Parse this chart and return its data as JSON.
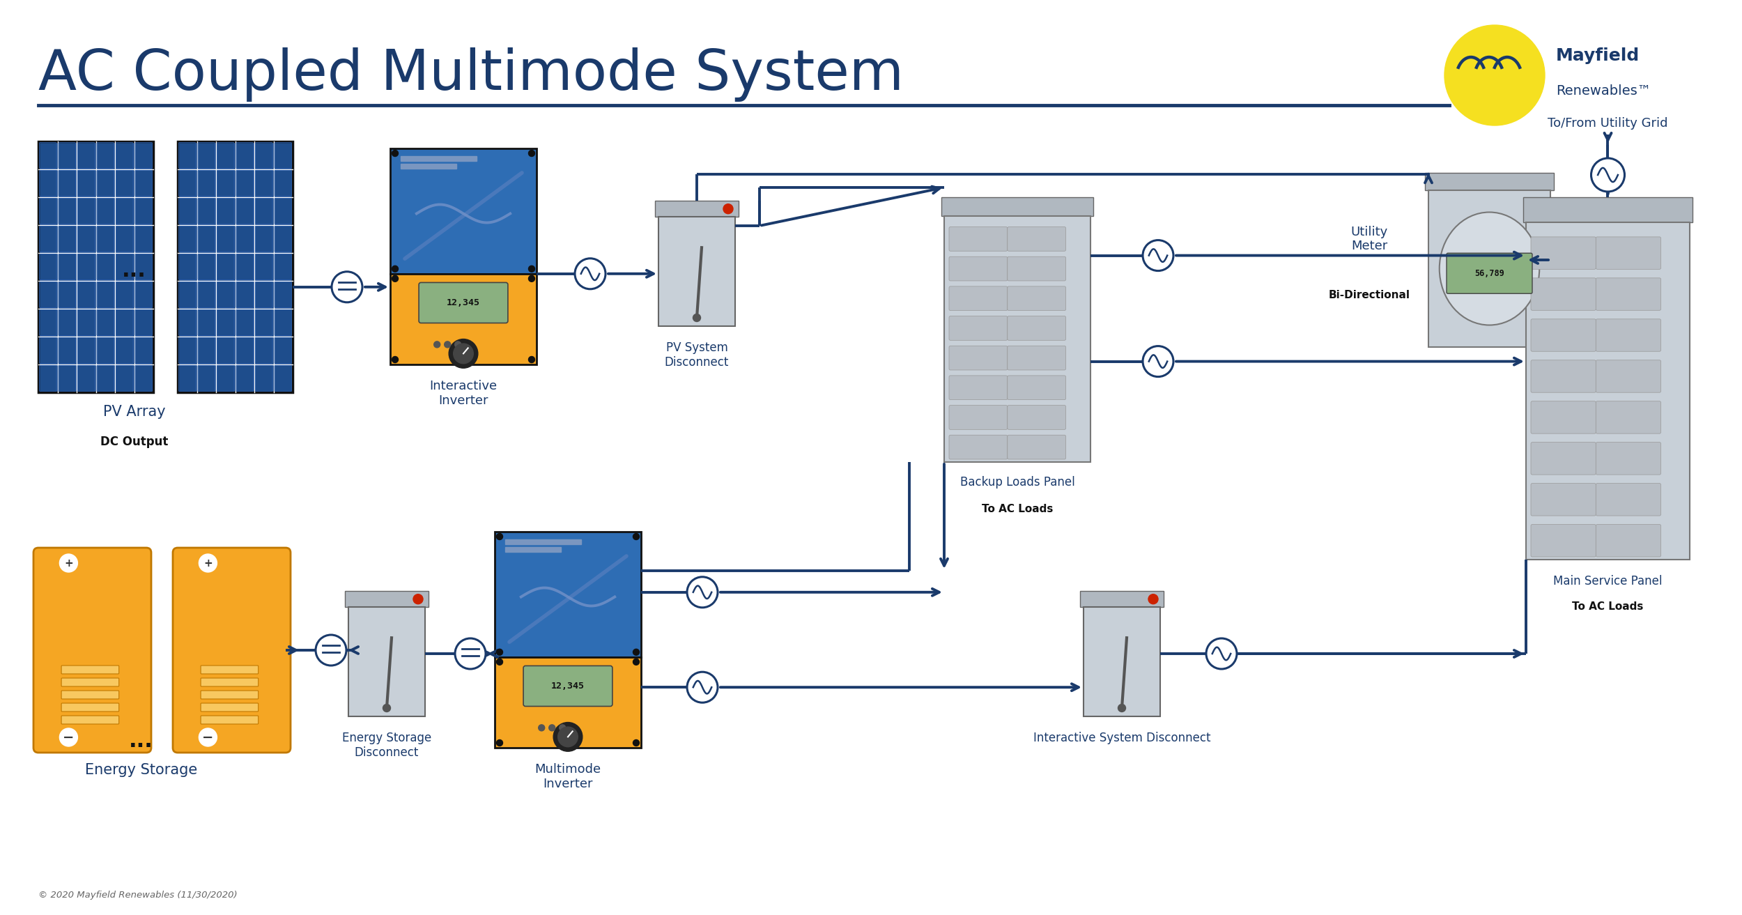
{
  "title": "AC Coupled Multimode System",
  "bg_color": "#ffffff",
  "title_color": "#1a3a6b",
  "title_fontsize": 58,
  "line_color": "#1a3a6b",
  "orange_color": "#f5a623",
  "blue_inverter": "#2e6db4",
  "dark_blue": "#1a3a6b",
  "light_gray": "#c8d0d8",
  "mid_gray": "#b0b8c0",
  "yellow_logo": "#f5e020",
  "copyright": "© 2020 Mayfield Renewables (11/30/2020)",
  "panel_blue": "#2a5298",
  "cell_blue": "#1e4d8c",
  "arrow_lw": 2.8,
  "labels": {
    "pv_array": "PV Array",
    "dc_output": "DC Output",
    "interactive_inverter": "Interactive\nInverter",
    "pv_disconnect": "PV System\nDisconnect",
    "utility_meter": "Utility\nMeter",
    "bi_directional": "Bi-Directional",
    "to_from_grid": "To/From Utility Grid",
    "backup_loads": "Backup Loads Panel",
    "to_ac_loads": "To AC Loads",
    "energy_storage": "Energy Storage",
    "es_disconnect": "Energy Storage\nDisconnect",
    "multimode_inverter": "Multimode\nInverter",
    "interactive_disconnect": "Interactive System Disconnect",
    "main_service": "Main Service Panel",
    "main_to_ac": "To AC Loads"
  }
}
